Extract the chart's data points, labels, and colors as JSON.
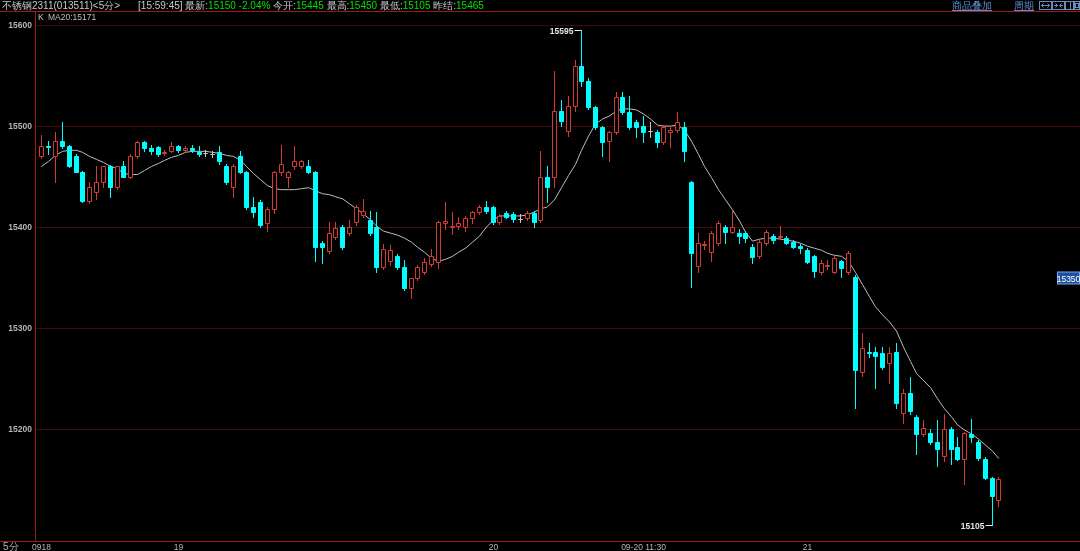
{
  "chart_data": {
    "type": "candlestick",
    "title": "不锈钢2311(013511)<5分>",
    "subtitle": "[15:59:45] 最新:15150 -2.04% 今开:15445 最高:15450 最低:15105 昨结:15465",
    "xlabel": "5分",
    "legend_title": "K",
    "legend": "top left",
    "grid": "y",
    "ylim": [
      15089,
      15614
    ],
    "yticks": [
      15200,
      15300,
      15400,
      15500,
      15600
    ],
    "categories": [
      "0918",
      null,
      null,
      null,
      null,
      null,
      null,
      null,
      null,
      null,
      null,
      null,
      null,
      null,
      null,
      null,
      null,
      null,
      null,
      null,
      "19",
      null,
      null,
      null,
      null,
      null,
      null,
      null,
      null,
      null,
      null,
      null,
      null,
      null,
      null,
      null,
      null,
      null,
      null,
      null,
      null,
      null,
      null,
      null,
      null,
      null,
      null,
      null,
      null,
      null,
      null,
      null,
      null,
      null,
      null,
      null,
      null,
      null,
      null,
      null,
      null,
      null,
      null,
      null,
      null,
      null,
      "20",
      null,
      null,
      null,
      null,
      null,
      null,
      null,
      null,
      null,
      null,
      null,
      null,
      null,
      null,
      null,
      null,
      null,
      null,
      null,
      null,
      null,
      "09-20 11:30",
      null,
      null,
      null,
      null,
      null,
      null,
      null,
      null,
      null,
      null,
      null,
      null,
      null,
      null,
      null,
      null,
      null,
      null,
      null,
      null,
      null,
      null,
      null,
      "21",
      null,
      null,
      null,
      null,
      null,
      null,
      null,
      null,
      null,
      null,
      null,
      null,
      null,
      null,
      null,
      null,
      null,
      null,
      null,
      null,
      null,
      null,
      null,
      null,
      null,
      null,
      null,
      null,
      null,
      null,
      null,
      null,
      null,
      null,
      null,
      null,
      null,
      null,
      null
    ],
    "ohlc": [
      [
        15470,
        15491,
        15468,
        15480
      ],
      [
        15480,
        15485,
        15472,
        15479
      ],
      [
        15470,
        15494,
        15445,
        15485
      ],
      [
        15485,
        15504,
        15478,
        15480
      ],
      [
        15480,
        15481,
        15459,
        15460
      ],
      [
        15470,
        15472,
        15455,
        15455
      ],
      [
        15455,
        15456,
        15425,
        15426
      ],
      [
        15426,
        15445,
        15424,
        15440
      ],
      [
        15435,
        15460,
        15428,
        15445
      ],
      [
        15445,
        15460,
        15440,
        15460
      ],
      [
        15460,
        15461,
        15430,
        15440
      ],
      [
        15440,
        15460,
        15438,
        15460
      ],
      [
        15460,
        15465,
        15450,
        15450
      ],
      [
        15450,
        15472,
        15449,
        15470
      ],
      [
        15470,
        15485,
        15468,
        15484
      ],
      [
        15484,
        15485,
        15475,
        15478
      ],
      [
        15478,
        15481,
        15472,
        15475
      ],
      [
        15479,
        15480,
        15470,
        15472
      ],
      [
        15473,
        15476,
        15471,
        15474
      ],
      [
        15475,
        15484,
        15474,
        15480
      ],
      [
        15480,
        15481,
        15474,
        15476
      ],
      [
        15476,
        15480,
        15474,
        15478
      ],
      [
        15478,
        15481,
        15474,
        15476
      ],
      [
        15474,
        15480,
        15470,
        15472
      ],
      [
        15473,
        15476,
        15470,
        15473
      ],
      [
        15472,
        15475,
        15469,
        15472
      ],
      [
        15474,
        15480,
        15462,
        15465
      ],
      [
        15460,
        15462,
        15443,
        15445
      ],
      [
        15440,
        15462,
        15430,
        15460
      ],
      [
        15470,
        15475,
        15454,
        15455
      ],
      [
        15455,
        15456,
        15418,
        15420
      ],
      [
        15420,
        15430,
        15410,
        15415
      ],
      [
        15425,
        15427,
        15400,
        15402
      ],
      [
        15404,
        15420,
        15396,
        15418
      ],
      [
        15418,
        15456,
        15414,
        15455
      ],
      [
        15455,
        15481,
        15452,
        15462
      ],
      [
        15450,
        15456,
        15440,
        15455
      ],
      [
        15460,
        15480,
        15457,
        15465
      ],
      [
        15460,
        15466,
        15458,
        15465
      ],
      [
        15460,
        15466,
        15454,
        15455
      ],
      [
        15455,
        15456,
        15366,
        15380
      ],
      [
        15384,
        15386,
        15364,
        15380
      ],
      [
        15376,
        15405,
        15374,
        15394
      ],
      [
        15390,
        15405,
        15388,
        15399
      ],
      [
        15400,
        15402,
        15378,
        15380
      ],
      [
        15394,
        15407,
        15392,
        15400
      ],
      [
        15405,
        15422,
        15402,
        15420
      ],
      [
        15412,
        15428,
        15410,
        15416
      ],
      [
        15407,
        15416,
        15392,
        15394
      ],
      [
        15400,
        15415,
        15355,
        15360
      ],
      [
        15360,
        15383,
        15358,
        15378
      ],
      [
        15366,
        15382,
        15362,
        15377
      ],
      [
        15371,
        15373,
        15358,
        15360
      ],
      [
        15360,
        15367,
        15338,
        15340
      ],
      [
        15340,
        15350,
        15330,
        15350
      ],
      [
        15350,
        15362,
        15348,
        15360
      ],
      [
        15355,
        15369,
        15353,
        15365
      ],
      [
        15363,
        15378,
        15361,
        15371
      ],
      [
        15365,
        15406,
        15359,
        15405
      ],
      [
        15404,
        15425,
        15398,
        15406
      ],
      [
        15400,
        15415,
        15393,
        15401
      ],
      [
        15401,
        15410,
        15398,
        15404
      ],
      [
        15400,
        15411,
        15396,
        15409
      ],
      [
        15409,
        15416,
        15404,
        15415
      ],
      [
        15415,
        15422,
        15413,
        15420
      ],
      [
        15420,
        15426,
        15414,
        15416
      ],
      [
        15420,
        15421,
        15403,
        15405
      ],
      [
        15405,
        15413,
        15403,
        15411
      ],
      [
        15414,
        15416,
        15409,
        15410
      ],
      [
        15413,
        15415,
        15405,
        15408
      ],
      [
        15408,
        15413,
        15405,
        15408
      ],
      [
        15409,
        15416,
        15407,
        15414
      ],
      [
        15414,
        15416,
        15400,
        15405
      ],
      [
        15407,
        15475,
        15405,
        15450
      ],
      [
        15450,
        15460,
        15425,
        15440
      ],
      [
        15450,
        15555,
        15440,
        15515
      ],
      [
        15515,
        15526,
        15500,
        15505
      ],
      [
        15495,
        15530,
        15490,
        15520
      ],
      [
        15520,
        15565,
        15515,
        15560
      ],
      [
        15560,
        15595,
        15540,
        15545
      ],
      [
        15545,
        15548,
        15517,
        15519
      ],
      [
        15519,
        15520,
        15497,
        15499
      ],
      [
        15499,
        15500,
        15470,
        15484
      ],
      [
        15485,
        15495,
        15465,
        15494
      ],
      [
        15494,
        15534,
        15492,
        15529
      ],
      [
        15529,
        15534,
        15512,
        15514
      ],
      [
        15514,
        15530,
        15497,
        15499
      ],
      [
        15504,
        15506,
        15489,
        15499
      ],
      [
        15500,
        15510,
        15484,
        15494
      ],
      [
        15495,
        15504,
        15489,
        15495
      ],
      [
        15494,
        15496,
        15479,
        15484
      ],
      [
        15484,
        15501,
        15482,
        15499
      ],
      [
        15494,
        15500,
        15479,
        15496
      ],
      [
        15496,
        15514,
        15494,
        15504
      ],
      [
        15499,
        15504,
        15465,
        15475
      ],
      [
        15445,
        15446,
        15341,
        15374
      ],
      [
        15361,
        15394,
        15355,
        15384
      ],
      [
        15382,
        15386,
        15378,
        15383
      ],
      [
        15375,
        15396,
        15366,
        15394
      ],
      [
        15384,
        15406,
        15382,
        15404
      ],
      [
        15400,
        15402,
        15384,
        15395
      ],
      [
        15395,
        15416,
        15394,
        15400
      ],
      [
        15394,
        15398,
        15384,
        15391
      ],
      [
        15394,
        15396,
        15385,
        15389
      ],
      [
        15380,
        15383,
        15364,
        15370
      ],
      [
        15371,
        15387,
        15369,
        15385
      ],
      [
        15384,
        15397,
        15382,
        15395
      ],
      [
        15391,
        15393,
        15384,
        15387
      ],
      [
        15390,
        15401,
        15389,
        15391
      ],
      [
        15389,
        15391,
        15383,
        15384
      ],
      [
        15385,
        15387,
        15379,
        15380
      ],
      [
        15381,
        15383,
        15374,
        15379
      ],
      [
        15377,
        15379,
        15364,
        15365
      ],
      [
        15371,
        15372,
        15351,
        15356
      ],
      [
        15355,
        15367,
        15353,
        15364
      ],
      [
        15361,
        15367,
        15358,
        15362
      ],
      [
        15355,
        15371,
        15354,
        15369
      ],
      [
        15366,
        15367,
        15351,
        15359
      ],
      [
        15355,
        15376,
        15353,
        15374
      ],
      [
        15351,
        15352,
        15221,
        15258
      ],
      [
        15256,
        15295,
        15252,
        15280
      ],
      [
        15276,
        15285,
        15271,
        15275
      ],
      [
        15276,
        15281,
        15241,
        15272
      ],
      [
        15275,
        15281,
        15259,
        15261
      ],
      [
        15265,
        15281,
        15246,
        15275
      ],
      [
        15276,
        15285,
        15221,
        15226
      ],
      [
        15216,
        15240,
        15206,
        15236
      ],
      [
        15236,
        15251,
        15215,
        15218
      ],
      [
        15212,
        15214,
        15175,
        15195
      ],
      [
        15195,
        15209,
        15193,
        15201
      ],
      [
        15196,
        15200,
        15185,
        15187
      ],
      [
        15187,
        15209,
        15163,
        15180
      ],
      [
        15173,
        15215,
        15168,
        15200
      ],
      [
        15200,
        15202,
        15165,
        15180
      ],
      [
        15182,
        15192,
        15169,
        15170
      ],
      [
        15170,
        15197,
        15145,
        15196
      ],
      [
        15195,
        15210,
        15187,
        15192
      ],
      [
        15187,
        15189,
        15169,
        15171
      ],
      [
        15170,
        15172,
        15150,
        15151
      ],
      [
        15151,
        15152,
        15105,
        15134
      ],
      [
        15130,
        15152,
        15124,
        15150
      ],
      null,
      null,
      null,
      null,
      null,
      null,
      null,
      null,
      null,
      null,
      null
    ],
    "value_labels": [
      null,
      null,
      null,
      null,
      null,
      null,
      null,
      null,
      null,
      null,
      null,
      null,
      null,
      null,
      null,
      null,
      null,
      null,
      null,
      null,
      null,
      null,
      null,
      null,
      null,
      null,
      null,
      null,
      null,
      null,
      null,
      null,
      null,
      null,
      null,
      null,
      null,
      null,
      null,
      null,
      null,
      null,
      null,
      null,
      null,
      null,
      null,
      null,
      null,
      null,
      null,
      null,
      null,
      null,
      null,
      null,
      null,
      null,
      null,
      null,
      null,
      null,
      null,
      null,
      null,
      null,
      null,
      null,
      null,
      null,
      null,
      null,
      null,
      null,
      null,
      null,
      null,
      null,
      null,
      "15595",
      null,
      null,
      null,
      null,
      null,
      null,
      null,
      null,
      null,
      null,
      null,
      null,
      null,
      null,
      null,
      null,
      null,
      null,
      null,
      null,
      null,
      null,
      null,
      null,
      null,
      null,
      null,
      null,
      null,
      null,
      null,
      null,
      null,
      null,
      null,
      null,
      null,
      null,
      null,
      null,
      null,
      null,
      null,
      null,
      null,
      null,
      null,
      null,
      null,
      null,
      null,
      null,
      null,
      null,
      null,
      null,
      null,
      null,
      null,
      "15105",
      null,
      null,
      null,
      null,
      null,
      null,
      null,
      null,
      null,
      null,
      null,
      null
    ],
    "colors": [
      "#d23c32",
      "#00ffff",
      "#d23c32",
      "#00ffff",
      "#00ffff",
      "#00ffff",
      "#00ffff",
      "#d23c32",
      "#d23c32",
      "#d23c32",
      "#00ffff",
      "#d23c32",
      "#00ffff",
      "#d23c32",
      "#d23c32",
      "#00ffff",
      "#00ffff",
      "#00ffff",
      "#d23c32",
      "#d23c32",
      "#00ffff",
      "#d23c32",
      "#00ffff",
      "#00ffff",
      "#c8c8c8",
      "#c8c8c8",
      "#00ffff",
      "#00ffff",
      "#d23c32",
      "#00ffff",
      "#00ffff",
      "#00ffff",
      "#00ffff",
      "#d23c32",
      "#d23c32",
      "#d23c32",
      "#d23c32",
      "#d23c32",
      "#d23c32",
      "#00ffff",
      "#00ffff",
      "#00ffff",
      "#d23c32",
      "#d23c32",
      "#00ffff",
      "#d23c32",
      "#d23c32",
      "#d23c32",
      "#00ffff",
      "#00ffff",
      "#d23c32",
      "#d23c32",
      "#00ffff",
      "#00ffff",
      "#d23c32",
      "#d23c32",
      "#d23c32",
      "#d23c32",
      "#d23c32",
      "#d23c32",
      "#d23c32",
      "#d23c32",
      "#d23c32",
      "#d23c32",
      "#d23c32",
      "#00ffff",
      "#00ffff",
      "#d23c32",
      "#00ffff",
      "#00ffff",
      "#c8c8c8",
      "#d23c32",
      "#00ffff",
      "#d23c32",
      "#00ffff",
      "#d23c32",
      "#00ffff",
      "#d23c32",
      "#d23c32",
      "#00ffff",
      "#00ffff",
      "#00ffff",
      "#00ffff",
      "#d23c32",
      "#d23c32",
      "#00ffff",
      "#00ffff",
      "#00ffff",
      "#00ffff",
      "#c8c8c8",
      "#00ffff",
      "#d23c32",
      "#d23c32",
      "#d23c32",
      "#00ffff",
      "#00ffff",
      "#d23c32",
      "#d23c32",
      "#d23c32",
      "#d23c32",
      "#00ffff",
      "#d23c32",
      "#00ffff",
      "#00ffff",
      "#00ffff",
      "#d23c32",
      "#d23c32",
      "#00ffff",
      "#d23c32",
      "#00ffff",
      "#00ffff",
      "#00ffff",
      "#00ffff",
      "#00ffff",
      "#d23c32",
      "#d23c32",
      "#d23c32",
      "#00ffff",
      "#d23c32",
      "#00ffff",
      "#d23c32",
      "#00ffff",
      "#00ffff",
      "#00ffff",
      "#d23c32",
      "#00ffff",
      "#d23c32",
      "#00ffff",
      "#00ffff",
      "#d23c32",
      "#00ffff",
      "#00ffff",
      "#d23c32",
      "#00ffff",
      "#00ffff",
      "#d23c32",
      "#00ffff",
      "#00ffff",
      "#00ffff",
      "#00ffff",
      "#d23c32",
      null,
      null,
      null,
      null,
      null,
      null,
      null,
      null,
      null,
      null,
      null
    ],
    "series": [
      {
        "name": "MA20:15171",
        "type": "line",
        "color": "#bebebe",
        "values": [
          15460,
          15465,
          15471,
          15475,
          15476,
          15476,
          15474,
          15470,
          15467,
          15464,
          15460,
          15458,
          15453,
          15452,
          15452,
          15456,
          15460,
          15463,
          15466,
          15469,
          15471,
          15474,
          15475,
          15475,
          15475,
          15474,
          15473,
          15471,
          15470,
          15466,
          15460,
          15453,
          15447,
          15441,
          15438,
          15437,
          15437,
          15437,
          15438,
          15439,
          15436,
          15433,
          15432,
          15430,
          15428,
          15423,
          15418,
          15413,
          15407,
          15401,
          15396,
          15394,
          15392,
          15389,
          15385,
          15380,
          15375,
          15369,
          15366,
          15368,
          15371,
          15375,
          15379,
          15385,
          15391,
          15400,
          15407,
          15411,
          15411,
          15411,
          15411,
          15412,
          15415,
          15418,
          15420,
          15427,
          15439,
          15451,
          15462,
          15476,
          15490,
          15502,
          15507,
          15510,
          15515,
          15517,
          15517,
          15516,
          15512,
          15507,
          15501,
          15500,
          15500,
          15501,
          15496,
          15485,
          15472,
          15460,
          15449,
          15437,
          15427,
          15417,
          15406,
          15395,
          15386,
          15388,
          15389,
          15389,
          15388,
          15387,
          15386,
          15384,
          15381,
          15379,
          15377,
          15374,
          15372,
          15371,
          15366,
          15355,
          15343,
          15331,
          15321,
          15313,
          15306,
          15297,
          15281,
          15267,
          15255,
          15248,
          15241,
          15230,
          15220,
          15212,
          15204,
          15199,
          15195,
          15190,
          15184,
          15178,
          15171,
          null,
          null,
          null,
          null,
          null,
          null,
          null,
          null,
          null,
          null,
          null
        ]
      }
    ],
    "annotations": [
      "商品叠加",
      "周期",
      {
        "text": "15350",
        "y": 15350
      }
    ]
  }
}
